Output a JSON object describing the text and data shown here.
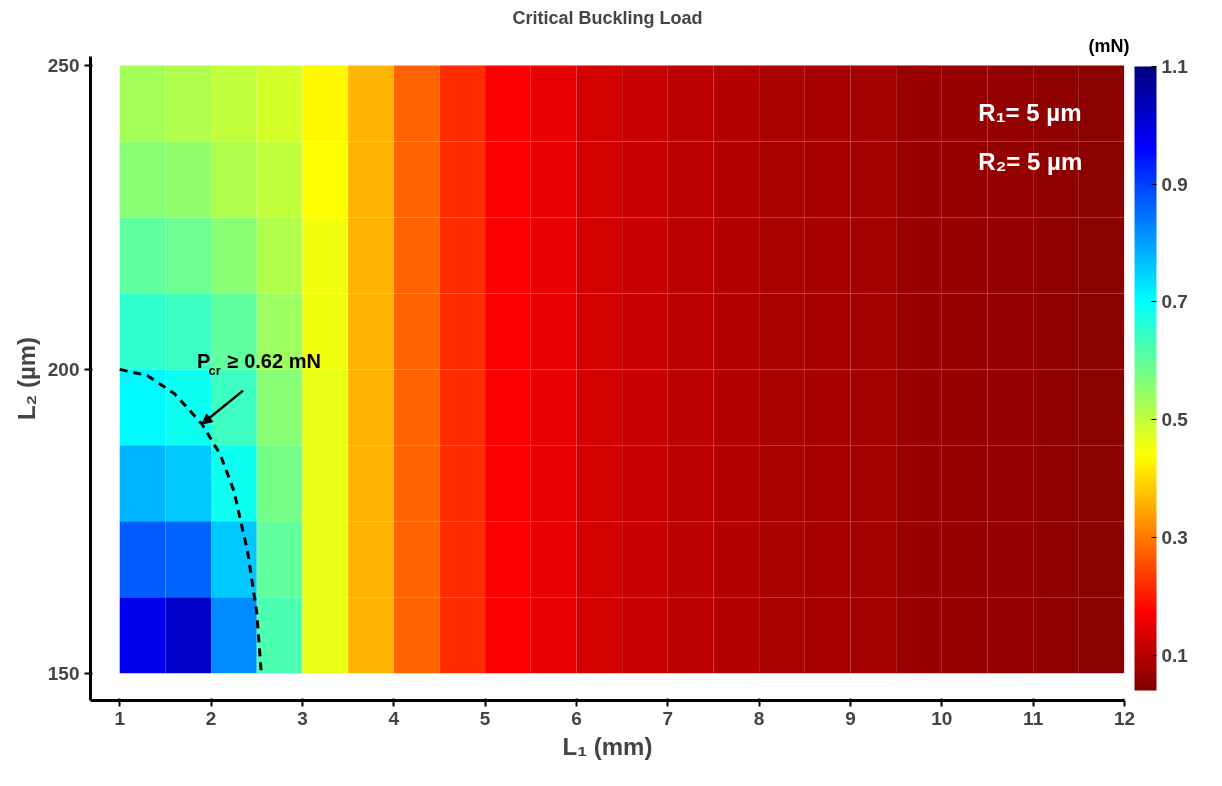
{
  "chart_data": {
    "type": "heatmap",
    "title": "Critical Buckling Load",
    "xlabel": "L₁ (mm)",
    "ylabel": "L₂ (µm)",
    "clabel": "(mN)",
    "x": [
      1.25,
      1.75,
      2.25,
      2.75,
      3.25,
      3.75,
      4.25,
      4.75,
      5.25,
      5.75,
      6.25,
      6.75,
      7.25,
      7.75,
      8.25,
      8.75,
      9.25,
      9.75,
      10.25,
      10.75,
      11.25,
      11.75
    ],
    "y": [
      243.75,
      231.25,
      218.75,
      206.25,
      193.75,
      181.25,
      168.75,
      156.25
    ],
    "cells": [
      [
        0.53,
        0.52,
        0.5,
        0.48,
        0.43,
        0.36,
        0.28,
        0.22,
        0.17,
        0.15,
        0.13,
        0.115,
        0.105,
        0.095,
        0.088,
        0.082,
        0.078,
        0.072,
        0.068,
        0.063,
        0.058,
        0.053
      ],
      [
        0.56,
        0.55,
        0.52,
        0.5,
        0.44,
        0.36,
        0.28,
        0.22,
        0.17,
        0.15,
        0.13,
        0.115,
        0.105,
        0.095,
        0.088,
        0.082,
        0.078,
        0.072,
        0.068,
        0.063,
        0.058,
        0.053
      ],
      [
        0.6,
        0.59,
        0.56,
        0.52,
        0.45,
        0.36,
        0.28,
        0.22,
        0.17,
        0.15,
        0.13,
        0.115,
        0.105,
        0.095,
        0.088,
        0.082,
        0.078,
        0.072,
        0.068,
        0.063,
        0.058,
        0.053
      ],
      [
        0.65,
        0.64,
        0.6,
        0.54,
        0.45,
        0.36,
        0.28,
        0.22,
        0.17,
        0.15,
        0.13,
        0.115,
        0.105,
        0.095,
        0.088,
        0.082,
        0.078,
        0.072,
        0.068,
        0.063,
        0.058,
        0.053
      ],
      [
        0.71,
        0.69,
        0.64,
        0.56,
        0.46,
        0.36,
        0.28,
        0.22,
        0.17,
        0.15,
        0.13,
        0.115,
        0.105,
        0.095,
        0.088,
        0.082,
        0.078,
        0.072,
        0.068,
        0.063,
        0.058,
        0.053
      ],
      [
        0.78,
        0.76,
        0.69,
        0.58,
        0.46,
        0.36,
        0.28,
        0.22,
        0.17,
        0.15,
        0.13,
        0.115,
        0.105,
        0.095,
        0.088,
        0.082,
        0.078,
        0.072,
        0.068,
        0.063,
        0.058,
        0.053
      ],
      [
        0.87,
        0.86,
        0.76,
        0.6,
        0.46,
        0.36,
        0.28,
        0.22,
        0.17,
        0.15,
        0.13,
        0.115,
        0.105,
        0.095,
        0.088,
        0.082,
        0.078,
        0.072,
        0.068,
        0.063,
        0.058,
        0.053
      ],
      [
        0.98,
        1.02,
        0.82,
        0.62,
        0.46,
        0.36,
        0.28,
        0.22,
        0.17,
        0.15,
        0.13,
        0.115,
        0.105,
        0.095,
        0.088,
        0.082,
        0.078,
        0.072,
        0.068,
        0.063,
        0.058,
        0.053
      ]
    ],
    "clim": [
      0.04,
      1.1
    ],
    "cticks": [
      0.1,
      0.3,
      0.5,
      0.7,
      0.9,
      1.1
    ],
    "xlim": [
      0.68,
      12
    ],
    "xticks": [
      1,
      2,
      3,
      4,
      5,
      6,
      7,
      8,
      9,
      10,
      11,
      12
    ],
    "ylim": [
      145.5,
      251.5
    ],
    "yticks": [
      150,
      200,
      250
    ],
    "series": [
      {
        "type": "line",
        "color": "#000000",
        "line_style": "dashed",
        "x": [
          1,
          1.3,
          1.6,
          1.9,
          2.1,
          2.25,
          2.4,
          2.5,
          2.55
        ],
        "values": [
          200,
          199,
          196,
          191,
          186,
          180,
          170,
          160,
          150
        ]
      }
    ],
    "annotations": [
      {
        "text": "P$_{cr}$ ≥ 0.62 mN",
        "x": 1.9,
        "y": 191
      },
      "R₁= 5 µm",
      "R₂= 5 µm"
    ],
    "grid": false
  }
}
